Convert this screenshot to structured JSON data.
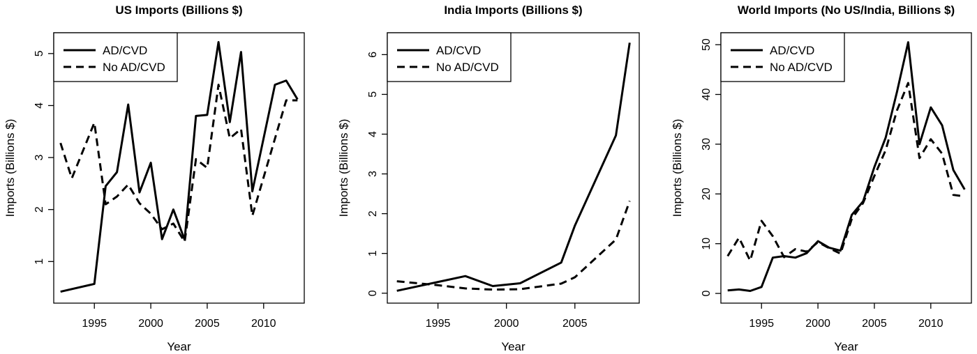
{
  "chart_data": [
    {
      "type": "line",
      "title": "US Imports (Billions $)",
      "xlabel": "Year",
      "ylabel": "Imports (Billions $)",
      "xlim": [
        1991.4,
        2013.6
      ],
      "ylim": [
        0.2,
        5.4
      ],
      "xticks": [
        "1995",
        "2000",
        "2005",
        "2010"
      ],
      "yticks": [
        "1",
        "2",
        "3",
        "4",
        "5"
      ],
      "legend": {
        "position": "top-left",
        "entries": [
          "AD/CVD",
          "No AD/CVD"
        ]
      },
      "series": [
        {
          "name": "AD/CVD",
          "style": "solid",
          "x": [
            1992,
            1995,
            1996,
            1997,
            1998,
            1999,
            2000,
            2001,
            2002,
            2003,
            2004,
            2005,
            2006,
            2007,
            2008,
            2009,
            2011,
            2012,
            2013
          ],
          "y": [
            0.42,
            0.57,
            2.45,
            2.72,
            4.02,
            2.33,
            2.9,
            1.43,
            2.0,
            1.42,
            3.8,
            3.82,
            5.22,
            3.68,
            5.03,
            2.35,
            4.4,
            4.48,
            4.12
          ]
        },
        {
          "name": "No AD/CVD",
          "style": "dashed",
          "x": [
            1992,
            1993,
            1995,
            1996,
            1997,
            1998,
            1999,
            2000,
            2001,
            2002,
            2003,
            2004,
            2005,
            2006,
            2007,
            2008,
            2009,
            2012,
            2013
          ],
          "y": [
            3.28,
            2.6,
            3.67,
            2.1,
            2.25,
            2.48,
            2.12,
            1.92,
            1.62,
            1.73,
            1.38,
            2.97,
            2.8,
            4.4,
            3.37,
            3.55,
            1.88,
            4.1,
            4.1
          ]
        }
      ]
    },
    {
      "type": "line",
      "title": "India Imports (Billions $)",
      "xlabel": "Year",
      "ylabel": "Imports (Billions $)",
      "xlim": [
        1991.3,
        2009.7
      ],
      "ylim": [
        -0.25,
        6.55
      ],
      "xticks": [
        "1995",
        "2000",
        "2005"
      ],
      "yticks": [
        "0",
        "1",
        "2",
        "3",
        "4",
        "5",
        "6"
      ],
      "legend": {
        "position": "top-left",
        "entries": [
          "AD/CVD",
          "No AD/CVD"
        ]
      },
      "series": [
        {
          "name": "AD/CVD",
          "style": "solid",
          "x": [
            1992,
            1997,
            1999,
            2001,
            2004,
            2005,
            2008,
            2009
          ],
          "y": [
            0.06,
            0.43,
            0.18,
            0.25,
            0.77,
            1.7,
            3.97,
            6.3
          ]
        },
        {
          "name": "No AD/CVD",
          "style": "dashed",
          "x": [
            1992,
            1995,
            1997,
            1999,
            2001,
            2004,
            2005,
            2008,
            2009
          ],
          "y": [
            0.3,
            0.2,
            0.12,
            0.09,
            0.1,
            0.24,
            0.4,
            1.35,
            2.32
          ]
        }
      ]
    },
    {
      "type": "line",
      "title": "World Imports (No US/India, Billions $)",
      "xlabel": "Year",
      "ylabel": "Imports (Billions $)",
      "xlim": [
        1991.4,
        2013.6
      ],
      "ylim": [
        -1.95,
        52.4
      ],
      "xticks": [
        "1995",
        "2000",
        "2005",
        "2010"
      ],
      "yticks": [
        "0",
        "10",
        "20",
        "30",
        "40",
        "50"
      ],
      "legend": {
        "position": "top-left",
        "entries": [
          "AD/CVD",
          "No AD/CVD"
        ]
      },
      "series": [
        {
          "name": "AD/CVD",
          "style": "solid",
          "x": [
            1992,
            1993,
            1994,
            1995,
            1996,
            1997,
            1998,
            1999,
            2000,
            2001,
            2002,
            2003,
            2004,
            2005,
            2006,
            2007,
            2008,
            2009,
            2010,
            2011,
            2012,
            2013
          ],
          "y": [
            0.6,
            0.8,
            0.5,
            1.3,
            7.2,
            7.5,
            7.2,
            8.1,
            10.5,
            9.2,
            8.6,
            15.8,
            18.5,
            25.4,
            31.3,
            40.5,
            50.5,
            30.0,
            37.4,
            33.8,
            24.8,
            20.9
          ]
        },
        {
          "name": "No AD/CVD",
          "style": "dashed",
          "x": [
            1992,
            1993,
            1994,
            1995,
            1996,
            1997,
            1998,
            1999,
            2000,
            2001,
            2002,
            2003,
            2004,
            2005,
            2006,
            2007,
            2008,
            2009,
            2010,
            2011,
            2012,
            2013
          ],
          "y": [
            7.5,
            11.2,
            6.6,
            14.6,
            11.5,
            7.3,
            8.9,
            8.4,
            10.3,
            9.1,
            8.0,
            15.0,
            18.2,
            23.6,
            28.8,
            36.8,
            42.3,
            27.2,
            31.0,
            28.1,
            19.8,
            19.5
          ]
        }
      ]
    }
  ]
}
